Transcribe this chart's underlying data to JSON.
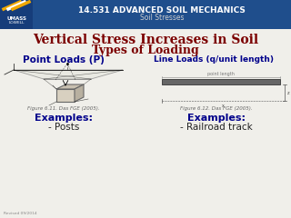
{
  "header_bg_color": "#1f4e8c",
  "header_text1": "14.531 ADVANCED SOIL MECHANICS",
  "header_text2": "Soil Stresses",
  "header_text_color": "#ffffff",
  "header_subtext_color": "#cccccc",
  "title_line1": "Vertical Stress Increases in Soil",
  "title_line2": "Types of Loading",
  "title_color": "#7b0000",
  "left_heading": "Point Loads (P)",
  "right_heading": "Line Loads (q/unit length)",
  "heading_color": "#00008b",
  "left_caption": "Figure 6.11. Das FGE (2005).",
  "right_caption": "Figure 6.12. Das FGE (2005).",
  "caption_color": "#666666",
  "examples_color": "#00008b",
  "bg_color": "#f0efea",
  "footer_text": "Revised 09/2014",
  "footer_color": "#888888",
  "logo_bg": "#1f4e8c",
  "logo_stripe1": "#f0a800",
  "logo_stripe2": "#ffffff"
}
